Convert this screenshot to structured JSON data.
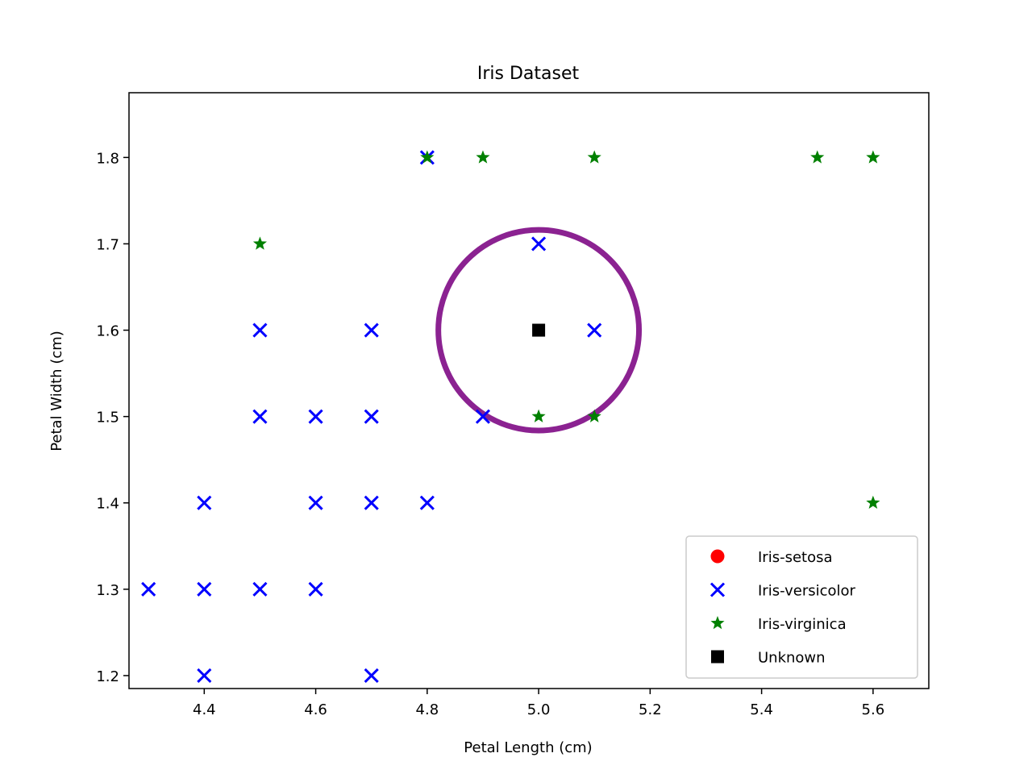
{
  "chart_data": {
    "type": "scatter",
    "title": "Iris Dataset",
    "xlabel": "Petal Length (cm)",
    "ylabel": "Petal Width (cm)",
    "xlim": [
      4.265,
      5.7
    ],
    "ylim": [
      1.185,
      1.875
    ],
    "xticks": [
      "4.4",
      "4.6",
      "4.8",
      "5.0",
      "5.2",
      "5.4",
      "5.6"
    ],
    "yticks": [
      "1.2",
      "1.3",
      "1.4",
      "1.5",
      "1.6",
      "1.7",
      "1.8"
    ],
    "grid": false,
    "legend_position": "lower-right",
    "series": [
      {
        "name": "Iris-setosa",
        "marker": "circle",
        "color": "#ff0000",
        "points": []
      },
      {
        "name": "Iris-versicolor",
        "marker": "x",
        "color": "#0000ff",
        "points": [
          [
            4.8,
            1.8
          ],
          [
            5.0,
            1.7
          ],
          [
            4.5,
            1.6
          ],
          [
            4.7,
            1.6
          ],
          [
            5.1,
            1.6
          ],
          [
            4.5,
            1.5
          ],
          [
            4.6,
            1.5
          ],
          [
            4.7,
            1.5
          ],
          [
            4.9,
            1.5
          ],
          [
            4.4,
            1.4
          ],
          [
            4.6,
            1.4
          ],
          [
            4.7,
            1.4
          ],
          [
            4.8,
            1.4
          ],
          [
            4.3,
            1.3
          ],
          [
            4.4,
            1.3
          ],
          [
            4.5,
            1.3
          ],
          [
            4.6,
            1.3
          ],
          [
            4.4,
            1.2
          ],
          [
            4.7,
            1.2
          ]
        ]
      },
      {
        "name": "Iris-virginica",
        "marker": "star",
        "color": "#008000",
        "points": [
          [
            4.8,
            1.8
          ],
          [
            4.9,
            1.8
          ],
          [
            5.1,
            1.8
          ],
          [
            5.5,
            1.8
          ],
          [
            5.6,
            1.8
          ],
          [
            4.5,
            1.7
          ],
          [
            5.0,
            1.5
          ],
          [
            5.1,
            1.5
          ],
          [
            5.6,
            1.4
          ]
        ]
      },
      {
        "name": "Unknown",
        "marker": "square",
        "color": "#000000",
        "points": [
          [
            5.0,
            1.6
          ]
        ]
      }
    ],
    "annotation": {
      "type": "circle",
      "center": [
        5.0,
        1.6
      ],
      "radius_x": 0.18,
      "color": "#8b2291"
    }
  }
}
